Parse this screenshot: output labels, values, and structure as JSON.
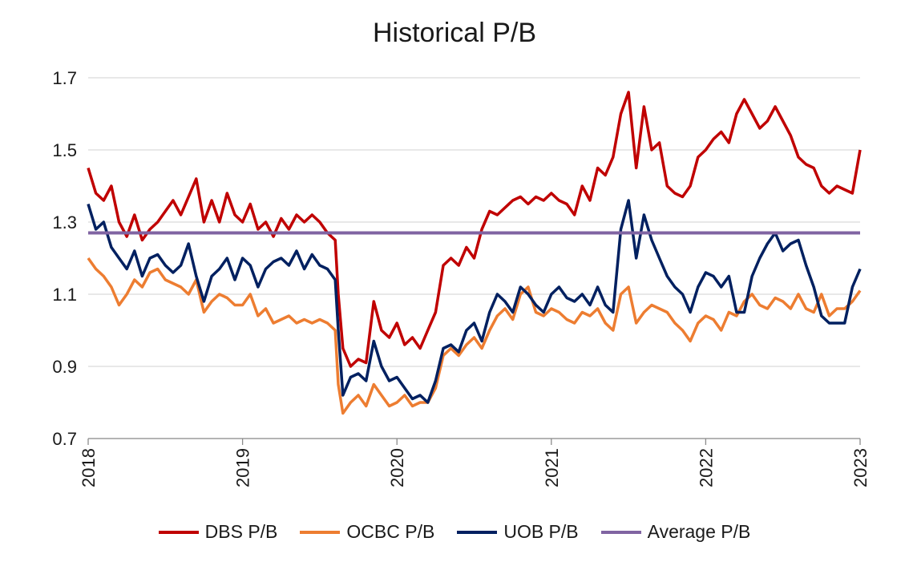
{
  "chart_data": {
    "type": "line",
    "title": "Historical P/B",
    "xlabel": "",
    "ylabel": "",
    "x_ticks": [
      "2018",
      "2019",
      "2020",
      "2021",
      "2022",
      "2023"
    ],
    "y_ticks": [
      "0.7",
      "0.9",
      "1.1",
      "1.3",
      "1.5",
      "1.7"
    ],
    "ylim": [
      0.7,
      1.7
    ],
    "xlim": [
      2018.0,
      2023.0
    ],
    "grid": true,
    "legend_position": "bottom",
    "series": [
      {
        "name": "DBS P/B",
        "color": "#c00000",
        "x": [
          2018.0,
          2018.05,
          2018.1,
          2018.15,
          2018.2,
          2018.25,
          2018.3,
          2018.35,
          2018.4,
          2018.45,
          2018.5,
          2018.55,
          2018.6,
          2018.65,
          2018.7,
          2018.75,
          2018.8,
          2018.85,
          2018.9,
          2018.95,
          2019.0,
          2019.05,
          2019.1,
          2019.15,
          2019.2,
          2019.25,
          2019.3,
          2019.35,
          2019.4,
          2019.45,
          2019.5,
          2019.55,
          2019.6,
          2019.62,
          2019.65,
          2019.7,
          2019.75,
          2019.8,
          2019.85,
          2019.9,
          2019.95,
          2020.0,
          2020.05,
          2020.1,
          2020.15,
          2020.2,
          2020.25,
          2020.3,
          2020.35,
          2020.4,
          2020.45,
          2020.5,
          2020.55,
          2020.6,
          2020.65,
          2020.7,
          2020.75,
          2020.8,
          2020.85,
          2020.9,
          2020.95,
          2021.0,
          2021.05,
          2021.1,
          2021.15,
          2021.2,
          2021.25,
          2021.3,
          2021.35,
          2021.4,
          2021.45,
          2021.5,
          2021.55,
          2021.6,
          2021.65,
          2021.7,
          2021.75,
          2021.8,
          2021.85,
          2021.9,
          2021.95,
          2022.0,
          2022.05,
          2022.1,
          2022.15,
          2022.2,
          2022.25,
          2022.3,
          2022.35,
          2022.4,
          2022.45,
          2022.5,
          2022.55,
          2022.6,
          2022.65,
          2022.7,
          2022.75,
          2022.8,
          2022.85,
          2022.9,
          2022.95,
          2023.0
        ],
        "values": [
          1.45,
          1.38,
          1.36,
          1.4,
          1.3,
          1.26,
          1.32,
          1.25,
          1.28,
          1.3,
          1.33,
          1.36,
          1.32,
          1.37,
          1.42,
          1.3,
          1.36,
          1.3,
          1.38,
          1.32,
          1.3,
          1.35,
          1.28,
          1.3,
          1.26,
          1.31,
          1.28,
          1.32,
          1.3,
          1.32,
          1.3,
          1.27,
          1.25,
          1.1,
          0.95,
          0.9,
          0.92,
          0.91,
          1.08,
          1.0,
          0.98,
          1.02,
          0.96,
          0.98,
          0.95,
          1.0,
          1.05,
          1.18,
          1.2,
          1.18,
          1.23,
          1.2,
          1.28,
          1.33,
          1.32,
          1.34,
          1.36,
          1.37,
          1.35,
          1.37,
          1.36,
          1.38,
          1.36,
          1.35,
          1.32,
          1.4,
          1.36,
          1.45,
          1.43,
          1.48,
          1.6,
          1.66,
          1.45,
          1.62,
          1.5,
          1.52,
          1.4,
          1.38,
          1.37,
          1.4,
          1.48,
          1.5,
          1.53,
          1.55,
          1.52,
          1.6,
          1.64,
          1.6,
          1.56,
          1.58,
          1.62,
          1.58,
          1.54,
          1.48,
          1.46,
          1.45,
          1.4,
          1.38,
          1.4,
          1.39,
          1.38,
          1.5
        ]
      },
      {
        "name": "OCBC P/B",
        "color": "#ed7d31",
        "x": [
          2018.0,
          2018.05,
          2018.1,
          2018.15,
          2018.2,
          2018.25,
          2018.3,
          2018.35,
          2018.4,
          2018.45,
          2018.5,
          2018.55,
          2018.6,
          2018.65,
          2018.7,
          2018.75,
          2018.8,
          2018.85,
          2018.9,
          2018.95,
          2019.0,
          2019.05,
          2019.1,
          2019.15,
          2019.2,
          2019.25,
          2019.3,
          2019.35,
          2019.4,
          2019.45,
          2019.5,
          2019.55,
          2019.6,
          2019.62,
          2019.65,
          2019.7,
          2019.75,
          2019.8,
          2019.85,
          2019.9,
          2019.95,
          2020.0,
          2020.05,
          2020.1,
          2020.15,
          2020.2,
          2020.25,
          2020.3,
          2020.35,
          2020.4,
          2020.45,
          2020.5,
          2020.55,
          2020.6,
          2020.65,
          2020.7,
          2020.75,
          2020.8,
          2020.85,
          2020.9,
          2020.95,
          2021.0,
          2021.05,
          2021.1,
          2021.15,
          2021.2,
          2021.25,
          2021.3,
          2021.35,
          2021.4,
          2021.45,
          2021.5,
          2021.55,
          2021.6,
          2021.65,
          2021.7,
          2021.75,
          2021.8,
          2021.85,
          2021.9,
          2021.95,
          2022.0,
          2022.05,
          2022.1,
          2022.15,
          2022.2,
          2022.25,
          2022.3,
          2022.35,
          2022.4,
          2022.45,
          2022.5,
          2022.55,
          2022.6,
          2022.65,
          2022.7,
          2022.75,
          2022.8,
          2022.85,
          2022.9,
          2022.95,
          2023.0
        ],
        "values": [
          1.2,
          1.17,
          1.15,
          1.12,
          1.07,
          1.1,
          1.14,
          1.12,
          1.16,
          1.17,
          1.14,
          1.13,
          1.12,
          1.1,
          1.14,
          1.05,
          1.08,
          1.1,
          1.09,
          1.07,
          1.07,
          1.1,
          1.04,
          1.06,
          1.02,
          1.03,
          1.04,
          1.02,
          1.03,
          1.02,
          1.03,
          1.02,
          1.0,
          0.85,
          0.77,
          0.8,
          0.82,
          0.79,
          0.85,
          0.82,
          0.79,
          0.8,
          0.82,
          0.79,
          0.8,
          0.8,
          0.84,
          0.93,
          0.95,
          0.93,
          0.96,
          0.98,
          0.95,
          1.0,
          1.04,
          1.06,
          1.03,
          1.1,
          1.12,
          1.05,
          1.04,
          1.06,
          1.05,
          1.03,
          1.02,
          1.05,
          1.04,
          1.06,
          1.02,
          1.0,
          1.1,
          1.12,
          1.02,
          1.05,
          1.07,
          1.06,
          1.05,
          1.02,
          1.0,
          0.97,
          1.02,
          1.04,
          1.03,
          1.0,
          1.05,
          1.04,
          1.08,
          1.1,
          1.07,
          1.06,
          1.09,
          1.08,
          1.06,
          1.1,
          1.06,
          1.05,
          1.1,
          1.04,
          1.06,
          1.06,
          1.08,
          1.11
        ]
      },
      {
        "name": "UOB P/B",
        "color": "#002060",
        "x": [
          2018.0,
          2018.05,
          2018.1,
          2018.15,
          2018.2,
          2018.25,
          2018.3,
          2018.35,
          2018.4,
          2018.45,
          2018.5,
          2018.55,
          2018.6,
          2018.65,
          2018.7,
          2018.75,
          2018.8,
          2018.85,
          2018.9,
          2018.95,
          2019.0,
          2019.05,
          2019.1,
          2019.15,
          2019.2,
          2019.25,
          2019.3,
          2019.35,
          2019.4,
          2019.45,
          2019.5,
          2019.55,
          2019.6,
          2019.62,
          2019.65,
          2019.7,
          2019.75,
          2019.8,
          2019.85,
          2019.9,
          2019.95,
          2020.0,
          2020.05,
          2020.1,
          2020.15,
          2020.2,
          2020.25,
          2020.3,
          2020.35,
          2020.4,
          2020.45,
          2020.5,
          2020.55,
          2020.6,
          2020.65,
          2020.7,
          2020.75,
          2020.8,
          2020.85,
          2020.9,
          2020.95,
          2021.0,
          2021.05,
          2021.1,
          2021.15,
          2021.2,
          2021.25,
          2021.3,
          2021.35,
          2021.4,
          2021.45,
          2021.5,
          2021.55,
          2021.6,
          2021.65,
          2021.7,
          2021.75,
          2021.8,
          2021.85,
          2021.9,
          2021.95,
          2022.0,
          2022.05,
          2022.1,
          2022.15,
          2022.2,
          2022.25,
          2022.3,
          2022.35,
          2022.4,
          2022.45,
          2022.5,
          2022.55,
          2022.6,
          2022.65,
          2022.7,
          2022.75,
          2022.8,
          2022.85,
          2022.9,
          2022.95,
          2023.0
        ],
        "values": [
          1.35,
          1.28,
          1.3,
          1.23,
          1.2,
          1.17,
          1.22,
          1.15,
          1.2,
          1.21,
          1.18,
          1.16,
          1.18,
          1.24,
          1.15,
          1.08,
          1.15,
          1.17,
          1.2,
          1.14,
          1.2,
          1.18,
          1.12,
          1.17,
          1.19,
          1.2,
          1.18,
          1.22,
          1.17,
          1.21,
          1.18,
          1.17,
          1.14,
          1.0,
          0.82,
          0.87,
          0.88,
          0.86,
          0.97,
          0.9,
          0.86,
          0.87,
          0.84,
          0.81,
          0.82,
          0.8,
          0.86,
          0.95,
          0.96,
          0.94,
          1.0,
          1.02,
          0.97,
          1.05,
          1.1,
          1.08,
          1.05,
          1.12,
          1.1,
          1.07,
          1.05,
          1.1,
          1.12,
          1.09,
          1.08,
          1.1,
          1.07,
          1.12,
          1.07,
          1.05,
          1.28,
          1.36,
          1.2,
          1.32,
          1.25,
          1.2,
          1.15,
          1.12,
          1.1,
          1.05,
          1.12,
          1.16,
          1.15,
          1.12,
          1.15,
          1.05,
          1.05,
          1.15,
          1.2,
          1.24,
          1.27,
          1.22,
          1.24,
          1.25,
          1.18,
          1.12,
          1.04,
          1.02,
          1.02,
          1.02,
          1.12,
          1.17
        ]
      },
      {
        "name": "Average P/B",
        "color": "#8064a2",
        "x": [
          2018.0,
          2023.0
        ],
        "values": [
          1.27,
          1.27
        ]
      }
    ]
  }
}
